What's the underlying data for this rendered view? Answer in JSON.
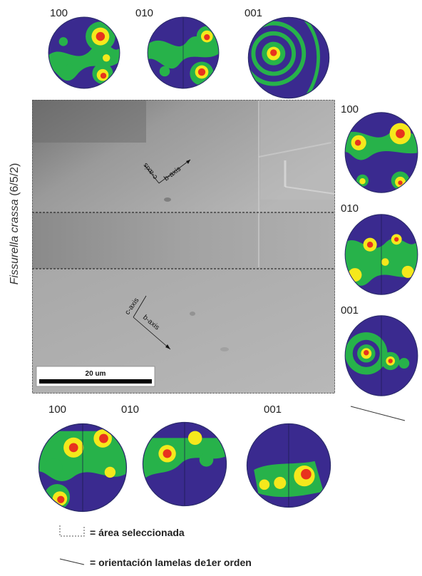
{
  "title_prefix_italic": "Fissurella crassa",
  "title_suffix": " (6/5/2)",
  "top_row": {
    "labels": [
      "100",
      "010",
      "001"
    ]
  },
  "right_column": {
    "labels": [
      "100",
      "010",
      "001"
    ]
  },
  "bottom_row": {
    "labels": [
      "100",
      "010",
      "001"
    ]
  },
  "micrograph": {
    "scale_bar_label": "20 um",
    "upper_axes": {
      "c": "c-axis",
      "b": "b-axis"
    },
    "lower_axes": {
      "c": "c-axis",
      "b": "b-axis"
    }
  },
  "legend": {
    "selected_area": "= área seleccionada",
    "lamellae": "= orientación lamelas de1er orden"
  },
  "colors": {
    "low": "#3a2a8f",
    "mid": "#27b24a",
    "high": "#f5e81c",
    "peak": "#e8321e"
  }
}
